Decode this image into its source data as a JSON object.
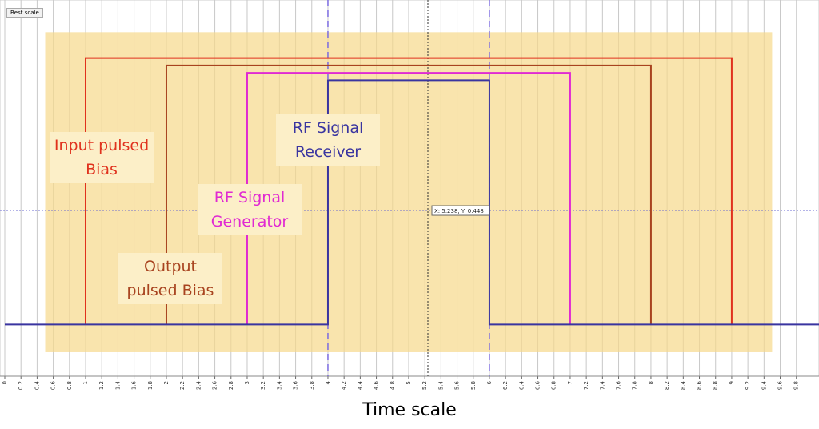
{
  "chart_data": {
    "type": "line",
    "button": "Best scale",
    "xlabel": "Time scale",
    "xlim": [
      0,
      10.08
    ],
    "ylim": [
      0,
      1
    ],
    "xticks": [
      0,
      0.2,
      0.4,
      0.6,
      0.8,
      1,
      1.2,
      1.4,
      1.6,
      1.8,
      2,
      2.2,
      2.4,
      2.6,
      2.8,
      3,
      3.2,
      3.4,
      3.6,
      3.8,
      4,
      4.2,
      4.4,
      4.6,
      4.8,
      5,
      5.2,
      5.4,
      5.6,
      5.8,
      6,
      6.2,
      6.4,
      6.6,
      6.8,
      7,
      7.2,
      7.4,
      7.6,
      7.8,
      8,
      8.2,
      8.4,
      8.6,
      8.8,
      9,
      9.2,
      9.4,
      9.6,
      9.8
    ],
    "grid": true,
    "highlight": {
      "x": [
        0.5,
        9.5
      ],
      "y": [
        0.065,
        0.93
      ],
      "color": "#f7d98a"
    },
    "markers": [
      4,
      6
    ],
    "cursor": {
      "x": 5.238,
      "y": 0.448,
      "label": "X: 5.238, Y: 0.448"
    },
    "series": [
      {
        "name": "Input pulsed Bias",
        "color": "#e0321e",
        "x": [
          1,
          1,
          9,
          9
        ],
        "values": [
          0.14,
          0.86,
          0.86,
          0.14
        ]
      },
      {
        "name": "Output pulsed Bias",
        "color": "#a8431f",
        "x": [
          2,
          2,
          8,
          8
        ],
        "values": [
          0.14,
          0.84,
          0.84,
          0.14
        ]
      },
      {
        "name": "RF Signal Generator",
        "color": "#e02ad2",
        "x": [
          3,
          3,
          7,
          7
        ],
        "values": [
          0.14,
          0.82,
          0.82,
          0.14
        ]
      },
      {
        "name": "RF Signal Receiver",
        "color": "#3a35a0",
        "x": [
          0,
          4,
          4,
          6,
          6,
          10.08
        ],
        "values": [
          0.14,
          0.14,
          0.8,
          0.8,
          0.14,
          0.14
        ]
      }
    ]
  }
}
